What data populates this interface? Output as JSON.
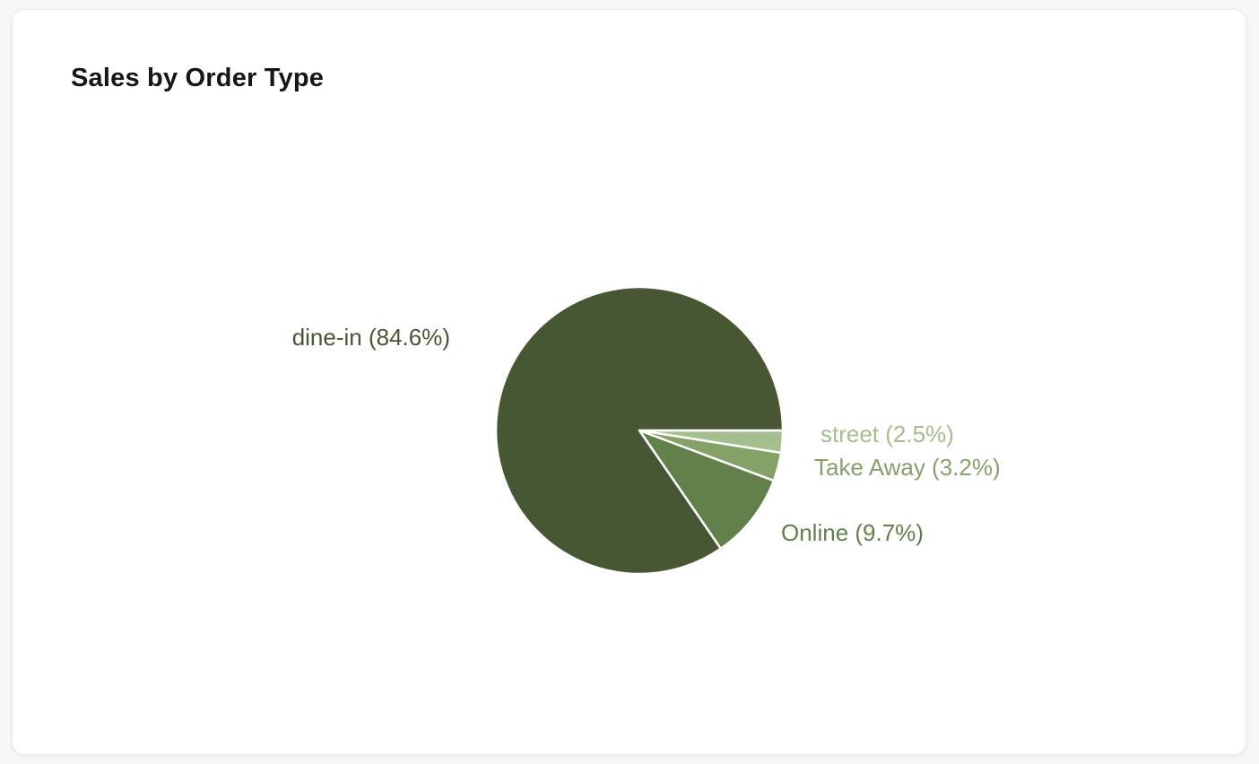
{
  "page": {
    "background_color": "#f6f7f9"
  },
  "card": {
    "title": "Sales by Order Type",
    "background_color": "#ffffff",
    "border_color": "#e7e9ec"
  },
  "chart_data": {
    "type": "pie",
    "title": "Sales by Order Type",
    "unit": "percent",
    "start_angle_deg": 0,
    "direction": "clockwise",
    "separator_color": "#ffffff",
    "legend_position": "none",
    "labels_outside": true,
    "slices": [
      {
        "label": "street",
        "value": 2.5,
        "color": "#a4be8e",
        "label_text": "street (2.5%)"
      },
      {
        "label": "Take Away",
        "value": 3.2,
        "color": "#84a268",
        "label_text": "Take Away (3.2%)"
      },
      {
        "label": "Online",
        "value": 9.7,
        "color": "#62804a",
        "label_text": "Online (9.7%)"
      },
      {
        "label": "dine-in",
        "value": 84.6,
        "color": "#475733",
        "label_text": "dine-in (84.6%)"
      }
    ]
  }
}
